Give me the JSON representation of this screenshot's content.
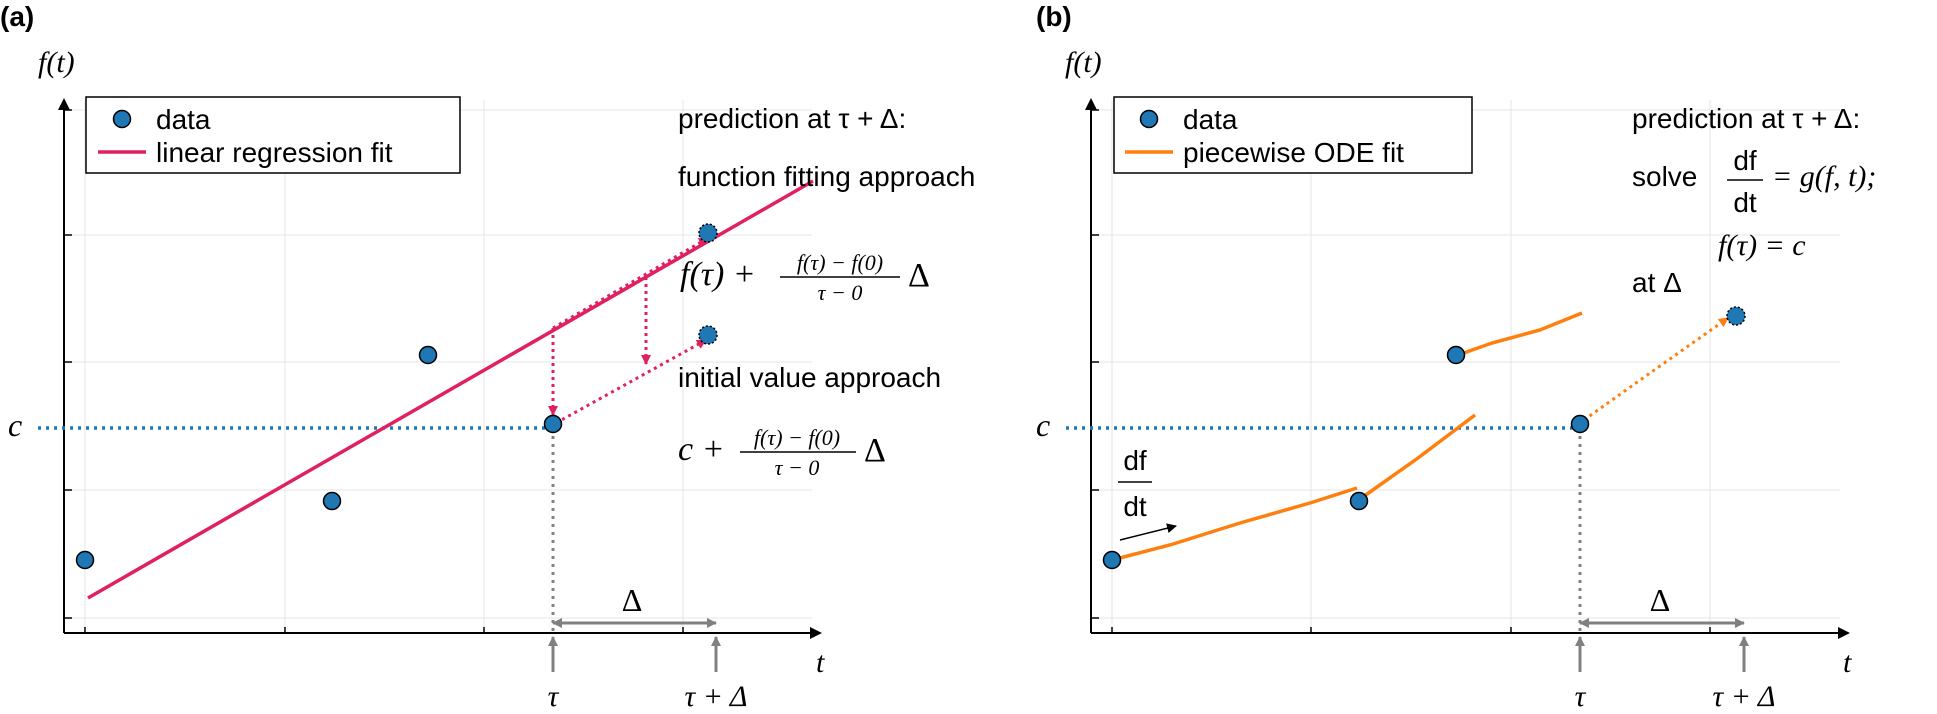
{
  "figure": {
    "panel_a": {
      "tag": "(a)",
      "y_axis_label": "f(t)",
      "x_axis_label": "t",
      "c_label": "c",
      "legend": {
        "markers": "data",
        "line": "linear regression fit"
      },
      "annotations": {
        "line1": "prediction at τ + Δ:",
        "line2": "function fitting approach",
        "formula1_lead": "f(τ) +",
        "frac_num": "f(τ) − f(0)",
        "frac_den": "τ − 0",
        "frac_tail": "Δ",
        "line3": "initial value approach",
        "formula2_lead": "c +"
      },
      "delta_label": "Δ",
      "tau_label": "τ",
      "tau_delta_label": "τ + Δ"
    },
    "panel_b": {
      "tag": "(b)",
      "y_axis_label": "f(t)",
      "x_axis_label": "t",
      "c_label": "c",
      "legend": {
        "markers": "data",
        "line": "piecewise ODE fit"
      },
      "annotations": {
        "line1": "prediction at τ + Δ:",
        "solve": "solve",
        "df": "df",
        "dt": "dt",
        "eq_tail": "= g(f, t);",
        "init": "f(τ) = c",
        "at": "at Δ"
      },
      "slope_num": "df",
      "slope_den": "dt",
      "delta_label": "Δ",
      "tau_label": "τ",
      "tau_delta_label": "τ + Δ"
    }
  },
  "colors": {
    "data": "#1f77b4",
    "regression": "#e0205f",
    "ode": "#ff7f0e",
    "dotted_blue": "#1f77b4",
    "gray": "#808080"
  }
}
